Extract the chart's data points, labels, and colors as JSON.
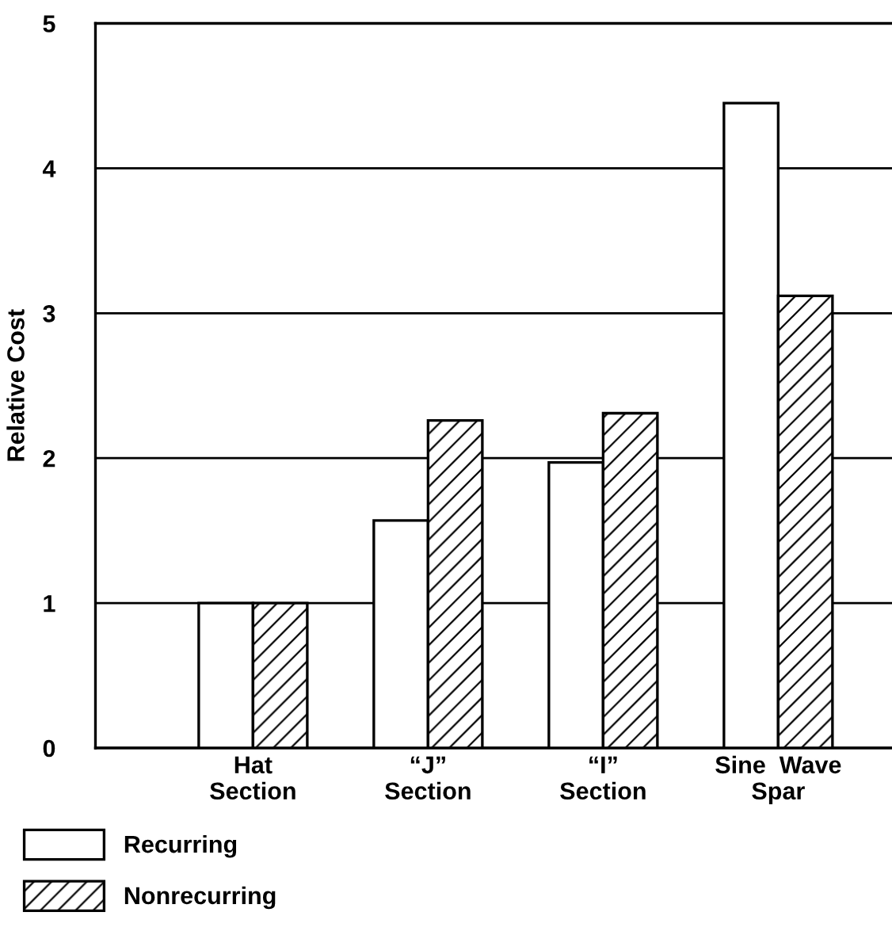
{
  "chart_data": {
    "type": "bar",
    "ylabel": "Relative Cost",
    "categories": [
      "Hat\nSection",
      "“J”\nSection",
      "“I”\nSection",
      "Sine  Wave\nSpar"
    ],
    "series": [
      {
        "name": "Recurring",
        "color": "#ffffff",
        "values": [
          1.0,
          1.57,
          1.97,
          4.45
        ]
      },
      {
        "name": "Nonrecurring",
        "color": "#000000",
        "values": [
          1.0,
          2.26,
          2.31,
          3.12
        ]
      }
    ],
    "ylim": [
      0,
      5
    ],
    "yticks": [
      0,
      1,
      2,
      3,
      4,
      5
    ],
    "grid": "y",
    "legend": "bottom left"
  }
}
